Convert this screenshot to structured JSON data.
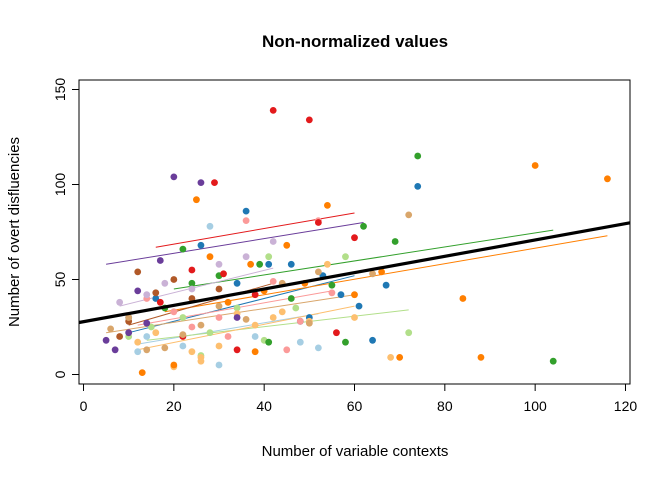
{
  "chart_data": {
    "type": "scatter",
    "title": "Non-normalized values",
    "xlabel": "Number of variable contexts",
    "ylabel": "Number of overt disfluencies",
    "xlim": [
      -1,
      121
    ],
    "ylim": [
      -5,
      155
    ],
    "x_ticks": [
      0,
      20,
      40,
      60,
      80,
      100,
      120
    ],
    "y_ticks": [
      0,
      50,
      100,
      150
    ],
    "x_tick_labels": [
      "0",
      "20",
      "40",
      "60",
      "80",
      "100",
      "120"
    ],
    "y_tick_labels": [
      "0",
      "50",
      "100",
      "150"
    ],
    "grid": false,
    "legend": "none",
    "overall_fit": {
      "intercept": 27.8,
      "slope": 0.43,
      "x_range": [
        -1,
        121
      ],
      "color": "#000000"
    },
    "groups": [
      {
        "color": "#A6CEE3",
        "points": [
          [
            12,
            12
          ],
          [
            14,
            20
          ],
          [
            22,
            15
          ],
          [
            28,
            78
          ],
          [
            30,
            5
          ],
          [
            38,
            20
          ],
          [
            48,
            17
          ],
          [
            52,
            14
          ]
        ],
        "fit": {
          "x_range": [
            12,
            52
          ],
          "y_range": [
            16,
            32
          ]
        }
      },
      {
        "color": "#1F78B4",
        "points": [
          [
            10,
            30
          ],
          [
            16,
            40
          ],
          [
            26,
            68
          ],
          [
            34,
            48
          ],
          [
            36,
            86
          ],
          [
            41,
            58
          ],
          [
            46,
            58
          ],
          [
            50,
            30
          ],
          [
            53,
            52
          ],
          [
            57,
            42
          ],
          [
            61,
            36
          ],
          [
            67,
            47
          ],
          [
            74,
            99
          ],
          [
            64,
            18
          ],
          [
            48,
            28
          ]
        ],
        "fit": {
          "x_range": [
            10,
            60
          ],
          "y_range": [
            22,
            52
          ]
        }
      },
      {
        "color": "#B2DF8A",
        "points": [
          [
            10,
            20
          ],
          [
            15,
            25
          ],
          [
            22,
            30
          ],
          [
            28,
            22
          ],
          [
            34,
            35
          ],
          [
            41,
            62
          ],
          [
            47,
            35
          ],
          [
            58,
            62
          ],
          [
            72,
            22
          ],
          [
            40,
            18
          ],
          [
            26,
            10
          ]
        ],
        "fit": {
          "x_range": [
            14,
            72
          ],
          "y_range": [
            18,
            34
          ]
        }
      },
      {
        "color": "#33A02C",
        "points": [
          [
            18,
            35
          ],
          [
            22,
            66
          ],
          [
            30,
            52
          ],
          [
            39,
            58
          ],
          [
            46,
            40
          ],
          [
            55,
            47
          ],
          [
            62,
            78
          ],
          [
            69,
            70
          ],
          [
            74,
            115
          ],
          [
            104,
            7
          ],
          [
            41,
            17
          ],
          [
            58,
            17
          ],
          [
            24,
            48
          ]
        ],
        "fit": {
          "x_range": [
            20,
            104
          ],
          "y_range": [
            45,
            76
          ]
        }
      },
      {
        "color": "#FB9A99",
        "points": [
          [
            14,
            40
          ],
          [
            20,
            33
          ],
          [
            24,
            25
          ],
          [
            30,
            30
          ],
          [
            36,
            81
          ],
          [
            42,
            49
          ],
          [
            48,
            28
          ],
          [
            55,
            43
          ],
          [
            52,
            81
          ],
          [
            32,
            20
          ],
          [
            45,
            13
          ]
        ],
        "fit": {
          "x_range": [
            12,
            55
          ],
          "y_range": [
            26,
            44
          ]
        }
      },
      {
        "color": "#E31A1C",
        "points": [
          [
            17,
            38
          ],
          [
            24,
            55
          ],
          [
            29,
            101
          ],
          [
            31,
            53
          ],
          [
            38,
            42
          ],
          [
            42,
            139
          ],
          [
            50,
            134
          ],
          [
            52,
            80
          ],
          [
            56,
            22
          ],
          [
            60,
            72
          ],
          [
            34,
            13
          ],
          [
            22,
            20
          ]
        ],
        "fit": {
          "x_range": [
            16,
            60
          ],
          "y_range": [
            67,
            85
          ]
        }
      },
      {
        "color": "#FDBF6F",
        "points": [
          [
            12,
            17
          ],
          [
            16,
            22
          ],
          [
            20,
            4
          ],
          [
            24,
            12
          ],
          [
            26,
            9
          ],
          [
            30,
            15
          ],
          [
            34,
            32
          ],
          [
            38,
            26
          ],
          [
            44,
            33
          ],
          [
            50,
            28
          ],
          [
            54,
            58
          ],
          [
            60,
            30
          ],
          [
            68,
            9
          ],
          [
            26,
            7
          ],
          [
            42,
            30
          ]
        ],
        "fit": {
          "x_range": [
            12,
            60
          ],
          "y_range": [
            13,
            36
          ]
        }
      },
      {
        "color": "#FF7F00",
        "points": [
          [
            13,
            1
          ],
          [
            20,
            5
          ],
          [
            25,
            92
          ],
          [
            28,
            62
          ],
          [
            32,
            38
          ],
          [
            37,
            58
          ],
          [
            40,
            44
          ],
          [
            45,
            68
          ],
          [
            49,
            48
          ],
          [
            54,
            89
          ],
          [
            60,
            42
          ],
          [
            66,
            54
          ],
          [
            70,
            9
          ],
          [
            84,
            40
          ],
          [
            100,
            110
          ],
          [
            116,
            103
          ],
          [
            88,
            9
          ],
          [
            38,
            12
          ]
        ],
        "fit": {
          "x_range": [
            18,
            116
          ],
          "y_range": [
            33,
            73
          ]
        }
      },
      {
        "color": "#CAB2D6",
        "points": [
          [
            8,
            38
          ],
          [
            14,
            42
          ],
          [
            18,
            48
          ],
          [
            24,
            45
          ],
          [
            30,
            58
          ],
          [
            36,
            62
          ],
          [
            42,
            70
          ]
        ],
        "fit": {
          "x_range": [
            8,
            42
          ],
          "y_range": [
            36,
            56
          ]
        }
      },
      {
        "color": "#6A3D9A",
        "points": [
          [
            5,
            18
          ],
          [
            7,
            13
          ],
          [
            10,
            22
          ],
          [
            12,
            44
          ],
          [
            14,
            27
          ],
          [
            17,
            60
          ],
          [
            20,
            104
          ],
          [
            26,
            101
          ],
          [
            34,
            30
          ]
        ],
        "fit": {
          "x_range": [
            5,
            62
          ],
          "y_range": [
            58,
            80
          ]
        }
      },
      {
        "color": "#B15928",
        "points": [
          [
            8,
            20
          ],
          [
            10,
            28
          ],
          [
            12,
            54
          ],
          [
            16,
            43
          ],
          [
            20,
            50
          ],
          [
            24,
            40
          ],
          [
            30,
            45
          ]
        ],
        "fit": {
          "x_range": [
            10,
            42
          ],
          "y_range": [
            26,
            48
          ]
        }
      },
      {
        "color": "#D9A66B",
        "points": [
          [
            6,
            24
          ],
          [
            10,
            30
          ],
          [
            14,
            13
          ],
          [
            18,
            14
          ],
          [
            22,
            21
          ],
          [
            26,
            26
          ],
          [
            30,
            36
          ],
          [
            36,
            29
          ],
          [
            44,
            48
          ],
          [
            52,
            54
          ],
          [
            64,
            53
          ],
          [
            72,
            84
          ],
          [
            50,
            27
          ]
        ],
        "fit": {
          "x_range": [
            5,
            60
          ],
          "y_range": [
            22,
            42
          ]
        }
      }
    ]
  }
}
